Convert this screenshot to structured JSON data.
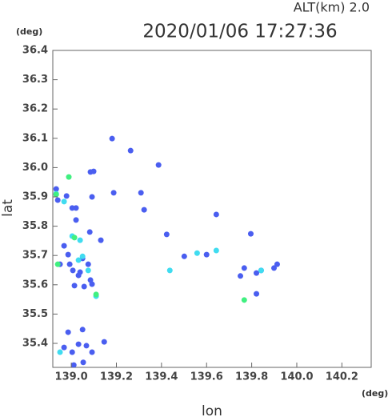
{
  "chart_data": {
    "type": "scatter",
    "title": "2020/01/06 17:27:36",
    "subtitle": "ALT(km) 2.0",
    "x_label": "lon",
    "y_label": "lat",
    "x_unit": "(deg)",
    "y_unit": "(deg)",
    "xlim": [
      138.918,
      140.33
    ],
    "ylim": [
      35.318,
      36.4
    ],
    "xticks": [
      {
        "value": 139.0,
        "label": "139.0"
      },
      139.2,
      139.4,
      139.6,
      139.8,
      {
        "value": 140.0,
        "label": "140.0"
      },
      140.2
    ],
    "yticks": [
      {
        "value": 35.4,
        "label": "35.4"
      },
      35.5,
      35.6,
      35.7,
      35.8,
      35.9,
      {
        "value": 36.0,
        "label": "36.0"
      },
      36.1,
      36.2,
      36.3,
      36.4
    ],
    "series": [
      {
        "color": "#4a5ef0",
        "x": [
          138.933,
          138.94,
          138.979,
          139.004,
          139.021,
          138.968,
          138.986,
          138.95,
          138.993,
          139.007,
          139.039,
          139.05,
          139.075,
          139.014,
          139.057,
          139.092,
          139.032,
          139.082,
          139.085,
          139.099,
          139.181,
          139.263,
          139.309,
          139.387,
          139.131,
          139.085,
          139.05,
          138.986,
          138.968,
          139.004,
          139.032,
          139.067,
          139.053,
          139.011,
          139.092,
          139.146,
          139.188,
          139.323,
          139.423,
          139.6,
          139.501,
          139.796,
          139.767,
          139.821,
          139.842,
          139.913,
          139.899,
          139.821,
          139.75,
          139.643,
          139.092,
          139.021
        ],
        "y": [
          35.927,
          35.889,
          35.903,
          35.862,
          35.862,
          35.733,
          35.703,
          35.67,
          35.67,
          35.649,
          35.643,
          35.69,
          35.67,
          35.597,
          35.594,
          35.602,
          35.632,
          35.78,
          35.985,
          35.987,
          36.099,
          36.058,
          35.914,
          36.009,
          35.752,
          35.616,
          35.447,
          35.438,
          35.386,
          35.37,
          35.397,
          35.392,
          35.335,
          35.326,
          35.37,
          35.405,
          35.914,
          35.856,
          35.772,
          35.703,
          35.697,
          35.774,
          35.657,
          35.64,
          35.649,
          35.67,
          35.657,
          35.569,
          35.63,
          35.84,
          35.9,
          35.821
        ]
      },
      {
        "color": "#40dcf0",
        "x": [
          138.933,
          138.968,
          139.004,
          139.039,
          139.032,
          139.075,
          138.95,
          139.11,
          139.558,
          139.643,
          139.842,
          139.437,
          139.05
        ],
        "y": [
          35.911,
          35.884,
          35.766,
          35.752,
          35.684,
          35.649,
          35.37,
          35.561,
          35.708,
          35.717,
          35.649,
          35.649,
          35.697
        ]
      },
      {
        "color": "#40f080",
        "x": [
          138.933,
          138.989,
          139.014,
          138.94,
          139.767,
          139.11
        ],
        "y": [
          35.908,
          35.968,
          35.761,
          35.67,
          35.548,
          35.567
        ]
      }
    ]
  }
}
